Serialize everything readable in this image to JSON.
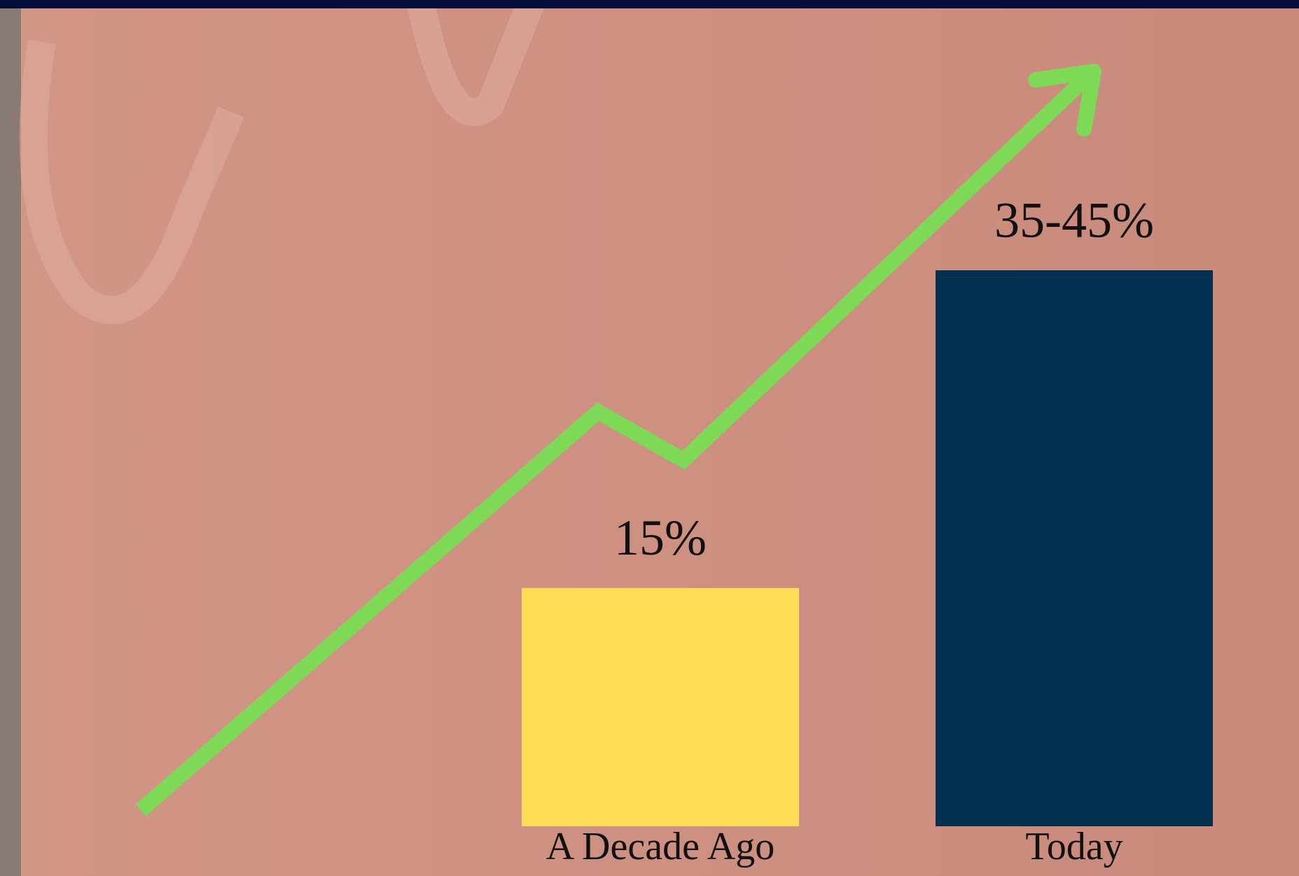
{
  "chart_data": {
    "type": "bar",
    "categories": [
      "A Decade Ago",
      "Today"
    ],
    "values": [
      15,
      35
    ],
    "value_labels": [
      "15%",
      "35-45%"
    ],
    "colors": [
      "#ffdd57",
      "#03304f"
    ]
  }
}
